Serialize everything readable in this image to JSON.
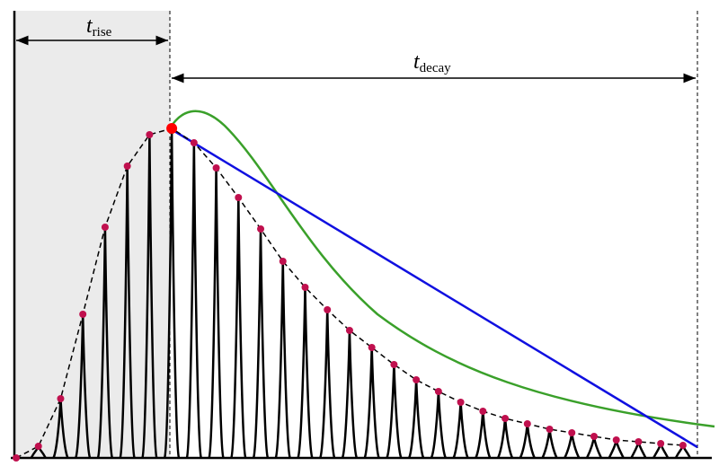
{
  "chart_data": {
    "type": "pulse",
    "annotations": [
      {
        "symbol": "t",
        "subscript": "rise"
      },
      {
        "symbol": "t",
        "subscript": "decay"
      }
    ],
    "values": [
      0,
      13,
      66,
      160,
      257,
      325,
      360,
      367,
      351,
      323,
      290,
      255,
      219,
      190,
      165,
      142,
      123,
      104,
      87,
      74,
      62,
      52,
      44,
      38,
      32,
      28,
      24,
      20,
      18,
      16,
      14
    ],
    "peak_index": 7,
    "ylim": [
      0,
      370
    ],
    "color": "#000000",
    "dot_color": "#c0104e",
    "peak_color": "#ff0000"
  }
}
